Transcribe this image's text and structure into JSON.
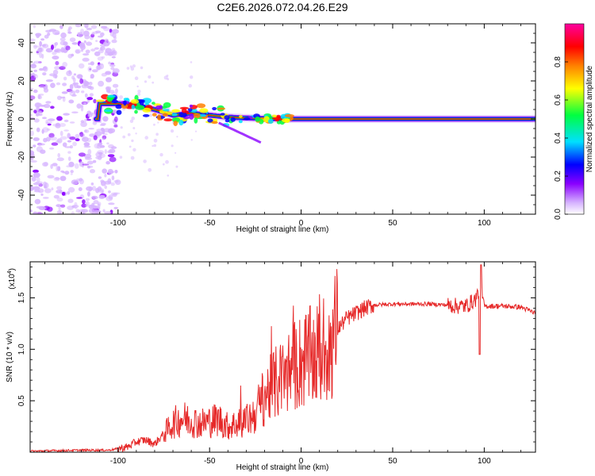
{
  "title": "C2E6.2026.072.04.26.E29",
  "chart_data": [
    {
      "type": "heatmap",
      "xlabel": "Height of straight line (km)",
      "ylabel": "Frequency (Hz)",
      "xlim": [
        -148,
        128
      ],
      "ylim": [
        -50,
        50
      ],
      "x_ticks": [
        -100,
        -50,
        0,
        50,
        100
      ],
      "y_ticks": [
        -40,
        -20,
        0,
        20,
        40
      ],
      "colorbar": {
        "label": "Normalized spectral amplitude",
        "range": [
          0,
          1
        ],
        "ticks": [
          0.0,
          0.2,
          0.4,
          0.6,
          0.8
        ],
        "tick_labels": [
          "0.0",
          "0.2",
          "0.4",
          "0.6",
          "0.8"
        ],
        "colormap": [
          "#ffffff",
          "#8a00ff",
          "#0000ff",
          "#00e0ff",
          "#00ff40",
          "#ffff00",
          "#ff8000",
          "#ff0000",
          "#ff00a0"
        ]
      },
      "noise_region": {
        "x": [
          -148,
          -100
        ],
        "y": [
          -50,
          50
        ]
      },
      "ridge": [
        {
          "x": -110,
          "f": 8
        },
        {
          "x": -100,
          "f": 8
        },
        {
          "x": -90,
          "f": 7
        },
        {
          "x": -80,
          "f": 5
        },
        {
          "x": -70,
          "f": 2
        },
        {
          "x": -60,
          "f": 3
        },
        {
          "x": -50,
          "f": 2
        },
        {
          "x": -40,
          "f": 1
        },
        {
          "x": -30,
          "f": 0.5
        },
        {
          "x": -20,
          "f": 0.3
        },
        {
          "x": -10,
          "f": 0
        },
        {
          "x": 0,
          "f": 0
        },
        {
          "x": 10,
          "f": 0
        },
        {
          "x": 20,
          "f": 0
        },
        {
          "x": 40,
          "f": 0
        },
        {
          "x": 60,
          "f": 0
        },
        {
          "x": 80,
          "f": 0
        },
        {
          "x": 100,
          "f": 0
        },
        {
          "x": 128,
          "f": 0
        }
      ]
    },
    {
      "type": "line",
      "xlabel": "Height of straight line (km)",
      "ylabel": "SNR (10 * v/v)",
      "y_multiplier": "(x10",
      "y_multiplier_exp": "4",
      "y_multiplier_close": ")",
      "xlim": [
        -148,
        128
      ],
      "ylim": [
        0,
        1.85
      ],
      "x_ticks": [
        -100,
        -50,
        0,
        50,
        100
      ],
      "y_ticks": [
        0.5,
        1.0,
        1.5
      ],
      "y_tick_labels": [
        "0.5",
        "1.0",
        "1.5"
      ],
      "color": "#e62a2a",
      "series": [
        {
          "x": [
            -148,
            -120,
            -105,
            -95,
            -90,
            -85,
            -80,
            -75,
            -70,
            -65,
            -60,
            -55,
            -50,
            -45,
            -40,
            -35,
            -30,
            -25,
            -20,
            -15,
            -10,
            -5,
            0,
            5,
            10,
            15,
            20,
            25,
            30,
            35,
            40,
            50,
            60,
            70,
            80,
            85,
            90,
            95,
            98,
            100,
            110,
            120,
            128
          ],
          "y": [
            0.01,
            0.02,
            0.02,
            0.05,
            0.1,
            0.12,
            0.08,
            0.18,
            0.28,
            0.33,
            0.31,
            0.28,
            0.3,
            0.32,
            0.25,
            0.28,
            0.3,
            0.38,
            0.55,
            0.65,
            0.72,
            0.82,
            0.88,
            0.92,
            0.95,
            1.05,
            1.2,
            1.3,
            1.35,
            1.4,
            1.43,
            1.44,
            1.44,
            1.44,
            1.43,
            1.42,
            1.42,
            1.48,
            1.6,
            1.42,
            1.42,
            1.41,
            1.35
          ]
        }
      ]
    }
  ]
}
